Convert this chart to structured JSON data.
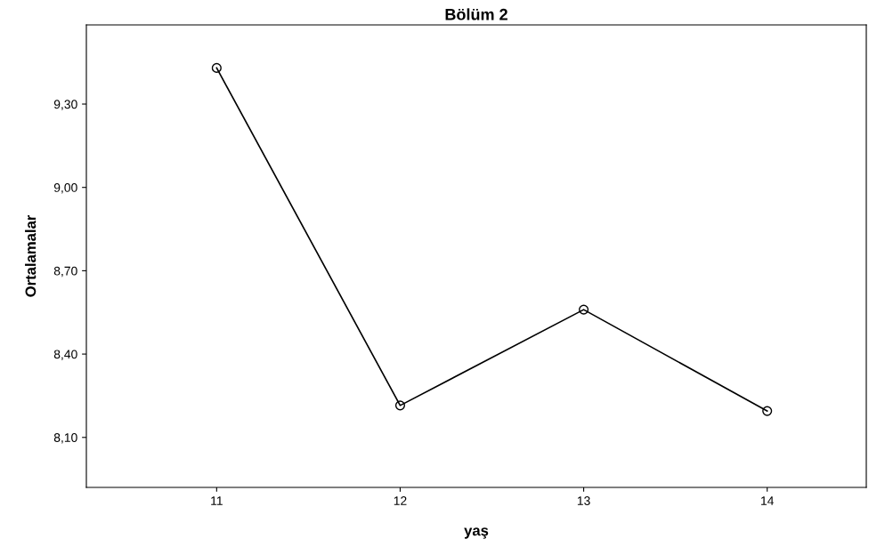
{
  "chart_data": {
    "type": "line",
    "title": "Bölüm 2",
    "xlabel": "yaş",
    "ylabel": "Ortalamalar",
    "x": [
      11,
      12,
      13,
      14
    ],
    "series": [
      {
        "color": "#000000",
        "values": [
          9.43,
          8.215,
          8.56,
          8.195
        ]
      }
    ],
    "xlim": [
      10.29,
      14.54
    ],
    "xticks": [
      11,
      12,
      13,
      14
    ],
    "ylim": [
      7.92,
      9.585
    ],
    "yticks": [
      {
        "value": 8.1,
        "label": "8,10"
      },
      {
        "value": 8.4,
        "label": "8,40"
      },
      {
        "value": 8.7,
        "label": "8,70"
      },
      {
        "value": 9.0,
        "label": "9,00"
      },
      {
        "value": 9.3,
        "label": "9,30"
      }
    ],
    "marker": "circle",
    "line_style": "solid",
    "grid": false,
    "legend": false
  }
}
